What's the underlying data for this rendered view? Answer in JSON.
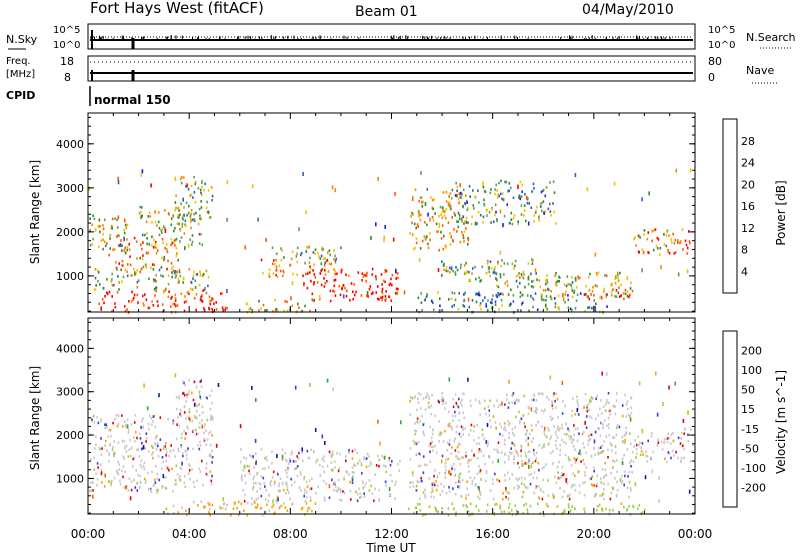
{
  "header": {
    "title": "Fort Hays West (fitACF)",
    "beam": "Beam 01",
    "date": "04/May/2010"
  },
  "sky_panel": {
    "left_label": "N.Sky",
    "left_ticks": [
      "10^5",
      "10^0"
    ],
    "right_label": "N.Search",
    "right_ticks": [
      "10^5",
      "10^0"
    ]
  },
  "freq_panel": {
    "left_label_1": "Freq.",
    "left_label_2": "[MHz]",
    "left_ticks": [
      "18",
      "8"
    ],
    "right_label": "Nave",
    "right_ticks": [
      "80",
      "0"
    ]
  },
  "cpid": {
    "label": "CPID",
    "mode": "normal 150"
  },
  "colors": {
    "power": [
      "#1a1aff",
      "#2c5fb8",
      "#5aa05a",
      "#2e8b2e",
      "#f2c200",
      "#f08c00",
      "#ff5a00",
      "#ff0000"
    ],
    "velocity": [
      "#e80000",
      "#f06a00",
      "#f5a400",
      "#c8c8c8",
      "#9ad04a",
      "#32a832",
      "#3c3cdc",
      "#1414a0"
    ]
  },
  "chart_data": [
    {
      "type": "heatmap",
      "name": "power",
      "ylabel": "Slant Range [km]",
      "yticks": [
        "1000",
        "2000",
        "3000",
        "4000"
      ],
      "ylim": [
        180,
        4700
      ],
      "xlim": [
        0,
        24
      ],
      "colorbar_label": "Power [dB]",
      "colorbar_ticks": [
        "4",
        "8",
        "12",
        "16",
        "20",
        "24",
        "28"
      ],
      "bands": [
        {
          "t0": 0.05,
          "t1": 1.6,
          "r0": 1500,
          "r1": 2400,
          "level": 0.55
        },
        {
          "t0": 1.0,
          "t1": 3.6,
          "r0": 1100,
          "r1": 1900,
          "level": 0.7
        },
        {
          "t0": 2.0,
          "t1": 4.5,
          "r0": 1700,
          "r1": 2600,
          "level": 0.5
        },
        {
          "t0": 3.4,
          "t1": 4.9,
          "r0": 2300,
          "r1": 3300,
          "level": 0.45
        },
        {
          "t0": 0.2,
          "t1": 4.8,
          "r0": 700,
          "r1": 1200,
          "level": 0.45
        },
        {
          "t0": 0.4,
          "t1": 5.5,
          "r0": 200,
          "r1": 700,
          "level": 0.9
        },
        {
          "t0": 6.8,
          "t1": 9.8,
          "r0": 1000,
          "r1": 1400,
          "level": 0.75
        },
        {
          "t0": 8.5,
          "t1": 12.3,
          "r0": 450,
          "r1": 1200,
          "level": 0.95
        },
        {
          "t0": 7.2,
          "t1": 10.0,
          "r0": 1300,
          "r1": 1700,
          "level": 0.45
        },
        {
          "t0": 6.0,
          "t1": 9.0,
          "r0": 200,
          "r1": 500,
          "level": 0.6
        },
        {
          "t0": 12.7,
          "t1": 15.0,
          "r0": 1600,
          "r1": 3000,
          "level": 0.6
        },
        {
          "t0": 13.8,
          "t1": 17.8,
          "r0": 900,
          "r1": 1400,
          "level": 0.45
        },
        {
          "t0": 14.5,
          "t1": 18.5,
          "r0": 2200,
          "r1": 3200,
          "level": 0.35
        },
        {
          "t0": 16.0,
          "t1": 21.5,
          "r0": 550,
          "r1": 1100,
          "level": 0.5
        },
        {
          "t0": 19.5,
          "t1": 21.5,
          "r0": 500,
          "r1": 800,
          "level": 0.8
        },
        {
          "t0": 21.5,
          "t1": 23.9,
          "r0": 1500,
          "r1": 2100,
          "level": 0.7
        },
        {
          "t0": 13.0,
          "t1": 20.5,
          "r0": 200,
          "r1": 650,
          "level": 0.3
        }
      ]
    },
    {
      "type": "heatmap",
      "name": "velocity",
      "ylabel": "Slant Range [km]",
      "yticks": [
        "1000",
        "2000",
        "3000",
        "4000"
      ],
      "ylim": [
        180,
        4700
      ],
      "xlim": [
        0,
        24
      ],
      "xlabel": "Time UT",
      "xticks": [
        "00:00",
        "04:00",
        "08:00",
        "12:00",
        "16:00",
        "20:00",
        "00:00"
      ],
      "colorbar_label": "Velocity [m s^-1]",
      "colorbar_ticks": [
        "-200",
        "-100",
        "-50",
        "-15",
        "15",
        "50",
        "100",
        "200"
      ],
      "bands": [
        {
          "t0": 0.05,
          "t1": 4.9,
          "r0": 700,
          "r1": 2500,
          "level": 0.45
        },
        {
          "t0": 3.4,
          "t1": 4.9,
          "r0": 2300,
          "r1": 3300,
          "level": 0.45
        },
        {
          "t0": 6.0,
          "t1": 12.3,
          "r0": 500,
          "r1": 1700,
          "level": 0.45
        },
        {
          "t0": 3.0,
          "t1": 9.0,
          "r0": 180,
          "r1": 500,
          "level": 0.2
        },
        {
          "t0": 12.7,
          "t1": 21.5,
          "r0": 550,
          "r1": 3000,
          "level": 0.45
        },
        {
          "t0": 12.5,
          "t1": 22.0,
          "r0": 180,
          "r1": 450,
          "level": 0.62
        },
        {
          "t0": 21.5,
          "t1": 23.9,
          "r0": 1400,
          "r1": 2200,
          "level": 0.45
        }
      ]
    }
  ]
}
